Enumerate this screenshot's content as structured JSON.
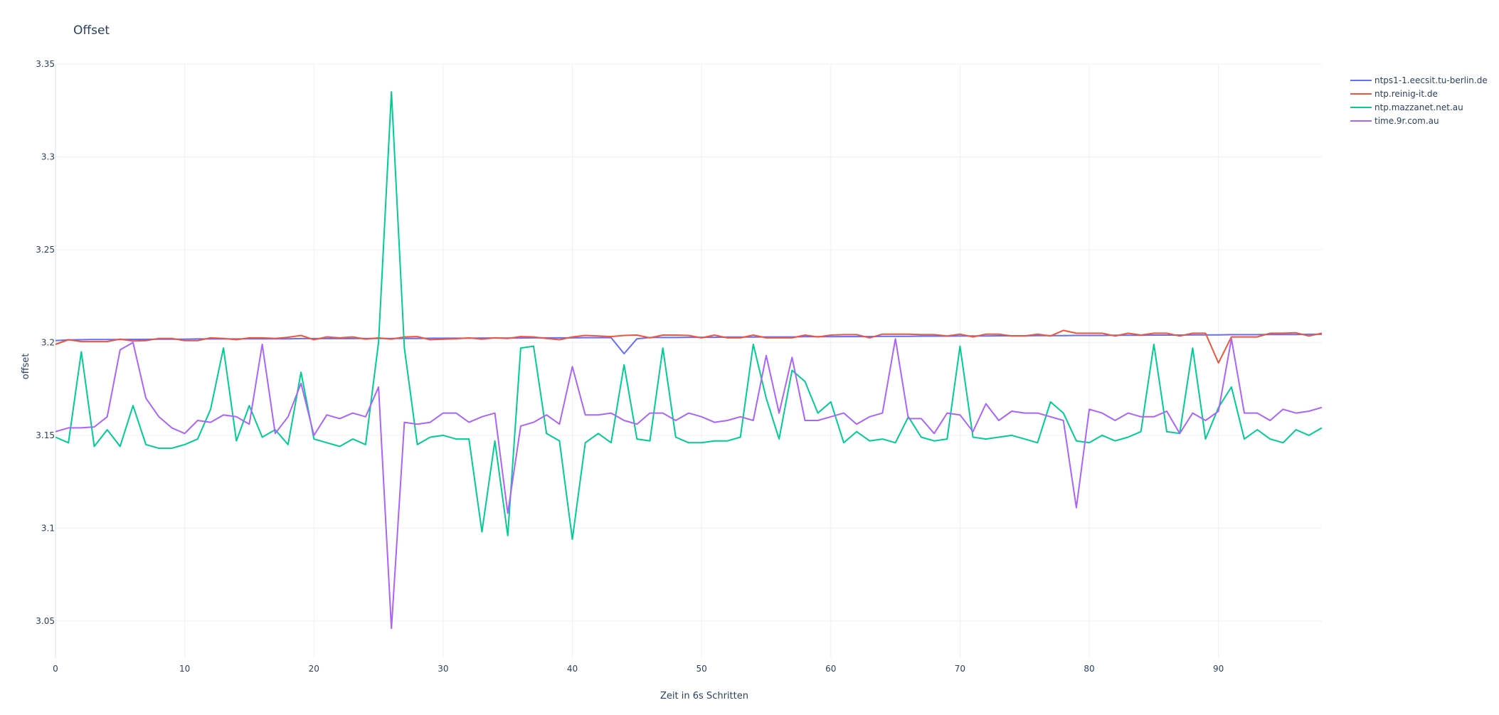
{
  "chart_data": {
    "type": "line",
    "title": "Offset",
    "xlabel": "Zeit in 6s Schritten",
    "ylabel": "offset",
    "xlim": [
      0,
      98
    ],
    "ylim": [
      3.03,
      3.35
    ],
    "xticks": [
      0,
      10,
      20,
      30,
      40,
      50,
      60,
      70,
      80,
      90
    ],
    "yticks": [
      3.05,
      3.1,
      3.15,
      3.2,
      3.25,
      3.3,
      3.35
    ],
    "ytick_labels": [
      "3.05",
      "3.1",
      "3.15",
      "3.2",
      "3.25",
      "3.3",
      "3.35"
    ],
    "grid": true,
    "legend_position": "top-right",
    "series": [
      {
        "name": "ntps1-1.eecsit.tu-berlin.de",
        "color": "#636efa",
        "values": [
          3.201,
          3.2014,
          3.2015,
          3.2016,
          3.2016,
          3.2016,
          3.2017,
          3.2017,
          3.2018,
          3.2018,
          3.2018,
          3.2019,
          3.2019,
          3.2019,
          3.2019,
          3.202,
          3.202,
          3.202,
          3.202,
          3.2021,
          3.2021,
          3.2021,
          3.2021,
          3.2021,
          3.2022,
          3.2022,
          3.2022,
          3.2022,
          3.2022,
          3.2023,
          3.2023,
          3.2023,
          3.2023,
          3.2024,
          3.2024,
          3.2024,
          3.2024,
          3.2025,
          3.2025,
          3.2025,
          3.2025,
          3.2026,
          3.2026,
          3.2026,
          3.194,
          3.202,
          3.2027,
          3.2027,
          3.2027,
          3.2028,
          3.2028,
          3.2028,
          3.2029,
          3.2029,
          3.2029,
          3.203,
          3.203,
          3.203,
          3.2031,
          3.2031,
          3.2031,
          3.2032,
          3.2032,
          3.2032,
          3.2033,
          3.2033,
          3.2033,
          3.2034,
          3.2034,
          3.2034,
          3.2035,
          3.2035,
          3.2035,
          3.2036,
          3.2036,
          3.2036,
          3.2037,
          3.2037,
          3.2037,
          3.2038,
          3.2038,
          3.2038,
          3.2039,
          3.2039,
          3.2039,
          3.204,
          3.204,
          3.204,
          3.2041,
          3.2041,
          3.2041,
          3.2042,
          3.2042,
          3.2042,
          3.2043,
          3.2043,
          3.2043,
          3.2044,
          3.2044
        ]
      },
      {
        "name": "ntp.reinig-it.de",
        "color": "#ef553b",
        "values": [
          3.199,
          3.2015,
          3.2005,
          3.2005,
          3.2005,
          3.2018,
          3.2008,
          3.201,
          3.2022,
          3.2022,
          3.201,
          3.201,
          3.2025,
          3.2022,
          3.2015,
          3.2025,
          3.2025,
          3.2022,
          3.2028,
          3.2038,
          3.2015,
          3.203,
          3.2025,
          3.203,
          3.2018,
          3.2025,
          3.2018,
          3.203,
          3.2032,
          3.2015,
          3.2018,
          3.202,
          3.2025,
          3.2018,
          3.2025,
          3.2022,
          3.2032,
          3.203,
          3.2022,
          3.2015,
          3.203,
          3.2038,
          3.2035,
          3.2032,
          3.2038,
          3.204,
          3.2025,
          3.204,
          3.204,
          3.2038,
          3.2025,
          3.204,
          3.2025,
          3.2025,
          3.204,
          3.2025,
          3.2025,
          3.2025,
          3.204,
          3.203,
          3.204,
          3.2042,
          3.2042,
          3.2025,
          3.2045,
          3.2045,
          3.2045,
          3.2042,
          3.2042,
          3.2035,
          3.2045,
          3.203,
          3.2045,
          3.2045,
          3.2035,
          3.2035,
          3.2045,
          3.2035,
          3.2065,
          3.205,
          3.205,
          3.205,
          3.2035,
          3.205,
          3.204,
          3.205,
          3.205,
          3.2035,
          3.205,
          3.205,
          3.189,
          3.203,
          3.203,
          3.203,
          3.205,
          3.205,
          3.2052,
          3.2035,
          3.205
        ]
      },
      {
        "name": "ntp.mazzanet.net.au",
        "color": "#00cc96",
        "values": [
          3.149,
          3.146,
          3.195,
          3.144,
          3.153,
          3.144,
          3.166,
          3.145,
          3.143,
          3.143,
          3.145,
          3.148,
          3.164,
          3.197,
          3.147,
          3.166,
          3.149,
          3.153,
          3.145,
          3.184,
          3.148,
          3.146,
          3.144,
          3.148,
          3.145,
          3.2,
          3.335,
          3.197,
          3.145,
          3.149,
          3.15,
          3.148,
          3.148,
          3.098,
          3.147,
          3.096,
          3.197,
          3.198,
          3.151,
          3.147,
          3.094,
          3.146,
          3.151,
          3.146,
          3.188,
          3.148,
          3.147,
          3.197,
          3.149,
          3.146,
          3.146,
          3.147,
          3.147,
          3.149,
          3.199,
          3.17,
          3.148,
          3.185,
          3.179,
          3.162,
          3.168,
          3.146,
          3.152,
          3.147,
          3.148,
          3.146,
          3.16,
          3.149,
          3.147,
          3.148,
          3.198,
          3.149,
          3.148,
          3.149,
          3.15,
          3.148,
          3.146,
          3.168,
          3.162,
          3.147,
          3.146,
          3.15,
          3.147,
          3.149,
          3.152,
          3.199,
          3.152,
          3.151,
          3.197,
          3.148,
          3.165,
          3.176,
          3.148,
          3.153,
          3.148,
          3.146,
          3.153,
          3.15,
          3.154
        ]
      },
      {
        "name": "time.9r.com.au",
        "color": "#ab63fa",
        "values": [
          3.152,
          3.154,
          3.154,
          3.1545,
          3.16,
          3.196,
          3.2,
          3.17,
          3.16,
          3.154,
          3.151,
          3.158,
          3.157,
          3.161,
          3.16,
          3.156,
          3.199,
          3.151,
          3.16,
          3.178,
          3.15,
          3.161,
          3.159,
          3.162,
          3.16,
          3.176,
          3.046,
          3.157,
          3.156,
          3.157,
          3.162,
          3.162,
          3.157,
          3.16,
          3.162,
          3.108,
          3.155,
          3.157,
          3.161,
          3.156,
          3.187,
          3.161,
          3.161,
          3.162,
          3.158,
          3.156,
          3.162,
          3.162,
          3.158,
          3.162,
          3.16,
          3.157,
          3.158,
          3.16,
          3.158,
          3.193,
          3.162,
          3.192,
          3.158,
          3.158,
          3.16,
          3.162,
          3.156,
          3.16,
          3.162,
          3.202,
          3.159,
          3.159,
          3.151,
          3.162,
          3.161,
          3.152,
          3.167,
          3.158,
          3.163,
          3.162,
          3.162,
          3.16,
          3.158,
          3.111,
          3.164,
          3.162,
          3.158,
          3.162,
          3.16,
          3.16,
          3.163,
          3.151,
          3.162,
          3.158,
          3.163,
          3.202,
          3.162,
          3.162,
          3.158,
          3.164,
          3.162,
          3.163,
          3.165
        ]
      }
    ]
  }
}
